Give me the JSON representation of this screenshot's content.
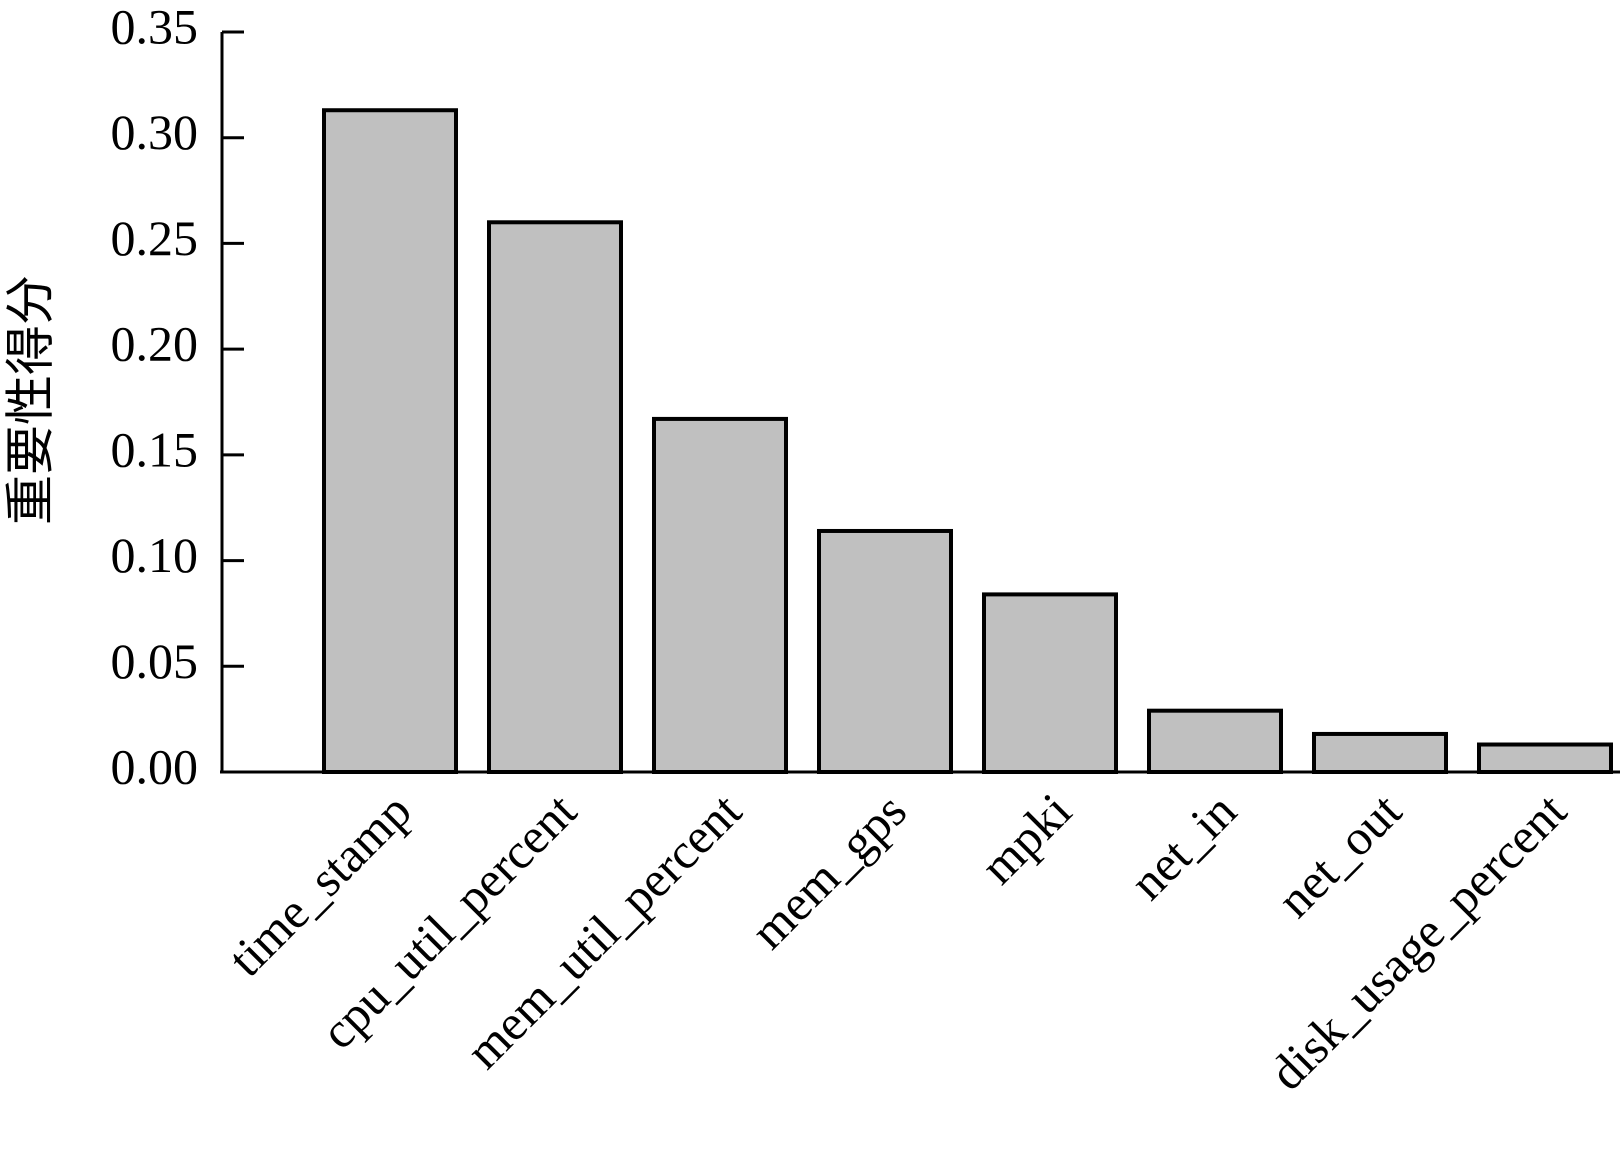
{
  "chart_data": {
    "type": "bar",
    "y_label": "重要性得分",
    "categories": [
      "time_stamp",
      "cpu_util_percent",
      "mem_util_percent",
      "mem_gps",
      "mpki",
      "net_in",
      "net_out",
      "disk_usage_percent"
    ],
    "values": [
      0.313,
      0.26,
      0.167,
      0.114,
      0.084,
      0.029,
      0.018,
      0.013
    ],
    "color": "#c0c0c0",
    "ylim": [
      0,
      0.35
    ],
    "yticks": [
      {
        "value": 0,
        "label": "0.00"
      },
      {
        "value": 0.05,
        "label": "0.05"
      },
      {
        "value": 0.1,
        "label": "0.10"
      },
      {
        "value": 0.15,
        "label": "0.15"
      },
      {
        "value": 0.2,
        "label": "0.20"
      },
      {
        "value": 0.25,
        "label": "0.25"
      },
      {
        "value": 0.3,
        "label": "0.30"
      },
      {
        "value": 0.35,
        "label": "0.35"
      }
    ],
    "grid": false
  }
}
